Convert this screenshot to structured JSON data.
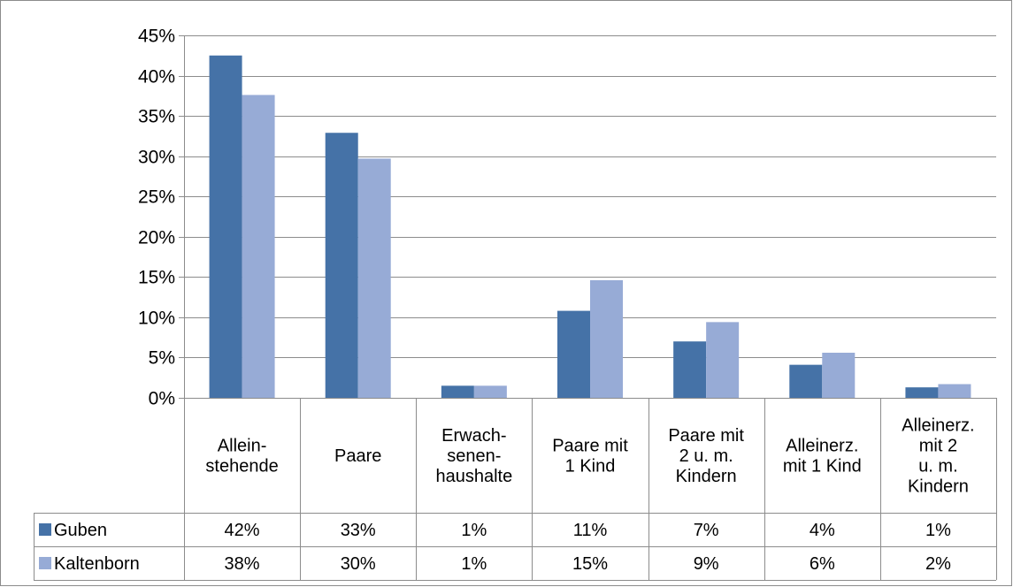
{
  "chart_data": {
    "type": "bar",
    "title": "",
    "xlabel": "",
    "ylabel": "",
    "ylim": [
      0,
      45
    ],
    "yticks": [
      0,
      5,
      10,
      15,
      20,
      25,
      30,
      35,
      40,
      45
    ],
    "ytick_labels": [
      "0%",
      "5%",
      "10%",
      "15%",
      "20%",
      "25%",
      "30%",
      "35%",
      "40%",
      "45%"
    ],
    "grid": true,
    "legend": "data-table",
    "categories": [
      [
        "Allein-",
        "stehende"
      ],
      [
        "Paare"
      ],
      [
        "Erwach-",
        "senen-",
        "haushalte"
      ],
      [
        "Paare mit",
        "1 Kind"
      ],
      [
        "Paare mit",
        "2 u. m.",
        "Kindern"
      ],
      [
        "Alleinerz.",
        "mit 1 Kind"
      ],
      [
        "Alleinerz.",
        "mit 2",
        "u. m.",
        "Kindern"
      ]
    ],
    "series": [
      {
        "name": "Guben",
        "color": "#4572A7",
        "values": [
          42.5,
          32.9,
          1.5,
          10.8,
          7.0,
          4.1,
          1.3
        ],
        "labels": [
          "42%",
          "33%",
          "1%",
          "11%",
          "7%",
          "4%",
          "1%"
        ]
      },
      {
        "name": "Kaltenborn",
        "color": "#97ABD6",
        "values": [
          37.6,
          29.7,
          1.5,
          14.6,
          9.4,
          5.6,
          1.7
        ],
        "labels": [
          "38%",
          "30%",
          "1%",
          "15%",
          "9%",
          "6%",
          "2%"
        ]
      }
    ]
  }
}
